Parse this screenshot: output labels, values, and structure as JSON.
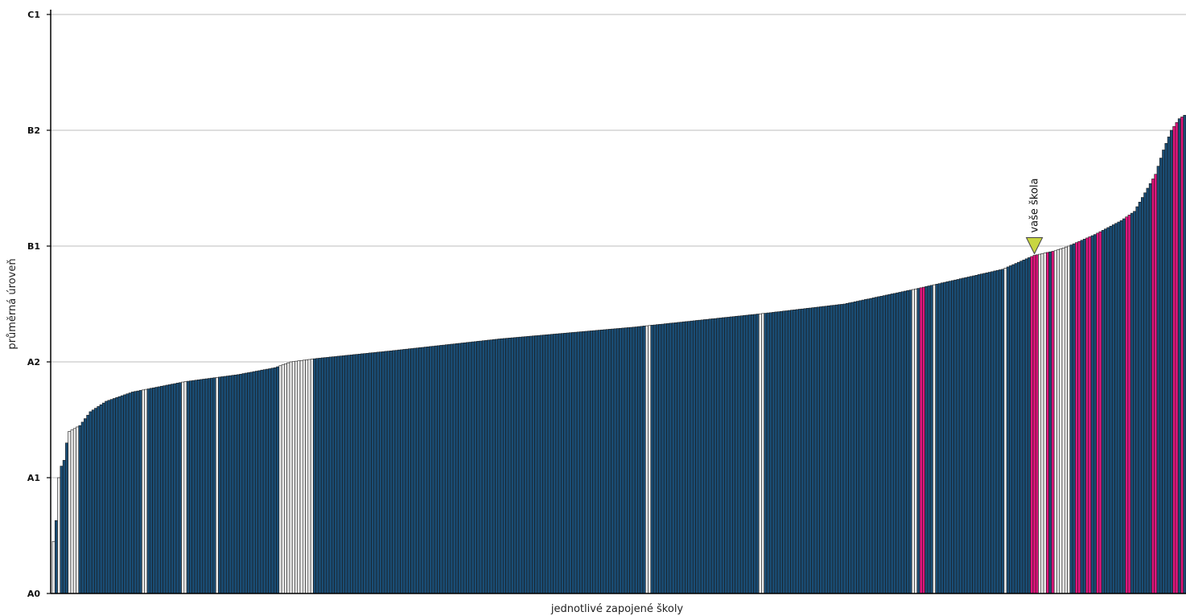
{
  "chart_data": {
    "type": "bar",
    "xlabel": "jednotlivé zapojené školy",
    "ylabel": "průměrná úroveň",
    "y_tick_labels": [
      "A0",
      "A1",
      "A2",
      "B1",
      "B2",
      "C1"
    ],
    "ylim": [
      0,
      5
    ],
    "grid": true,
    "marker_label": "vaše škola",
    "marker_index": 372,
    "colors": {
      "dark": "#1a4d75",
      "light": "#ececec",
      "pink": "#e0157d",
      "marker": "#c8d641",
      "grid": "#bdbdbd",
      "outline": "#1a1a1a"
    },
    "anchors": [
      [
        0,
        0.45
      ],
      [
        1,
        0.63
      ],
      [
        2,
        1.0
      ],
      [
        3,
        1.1
      ],
      [
        4,
        1.15
      ],
      [
        5,
        1.3
      ],
      [
        6,
        1.4
      ],
      [
        10,
        1.45
      ],
      [
        14,
        1.57
      ],
      [
        20,
        1.66
      ],
      [
        30,
        1.74
      ],
      [
        50,
        1.83
      ],
      [
        70,
        1.89
      ],
      [
        84,
        1.95
      ],
      [
        90,
        2.0
      ],
      [
        100,
        2.03
      ],
      [
        130,
        2.1
      ],
      [
        170,
        2.2
      ],
      [
        220,
        2.3
      ],
      [
        270,
        2.42
      ],
      [
        300,
        2.5
      ],
      [
        327,
        2.63
      ],
      [
        360,
        2.8
      ],
      [
        372,
        2.92
      ],
      [
        380,
        2.96
      ],
      [
        385,
        3.0
      ],
      [
        395,
        3.1
      ],
      [
        405,
        3.22
      ],
      [
        410,
        3.3
      ],
      [
        415,
        3.5
      ],
      [
        418,
        3.62
      ],
      [
        421,
        3.83
      ],
      [
        424,
        4.0
      ],
      [
        427,
        4.1
      ],
      [
        429,
        4.13
      ]
    ],
    "light_indices": [
      0,
      2,
      6,
      7,
      8,
      9,
      34,
      35,
      49,
      50,
      62,
      86,
      87,
      88,
      89,
      90,
      91,
      92,
      93,
      94,
      95,
      96,
      97,
      98,
      225,
      226,
      268,
      269,
      326,
      327,
      334,
      361,
      374,
      375,
      376,
      380,
      381,
      382,
      383,
      384,
      385
    ],
    "pink_indices": [
      329,
      330,
      371,
      372,
      373,
      377,
      379,
      388,
      389,
      392,
      393,
      396,
      397,
      407,
      408,
      417,
      418,
      425,
      426,
      428
    ]
  }
}
